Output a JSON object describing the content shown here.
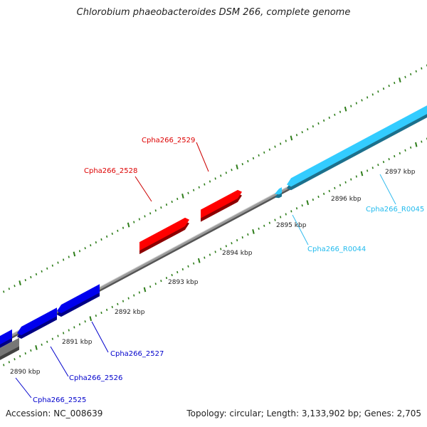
{
  "title": "Chlorobium phaeobacteroides DSM 266, complete genome",
  "footer": {
    "accession": "Accession: NC_008639",
    "topology": "Topology: circular; Length: 3,133,902 bp; Genes: 2,705"
  },
  "colors": {
    "backbone": "#8a8a8a",
    "ticks": "#2e7d1a",
    "kbp_label": "#222222",
    "cds_red": "#ff0000",
    "cds_blue": "#0000ee",
    "rrna_cyan": "#33ccff",
    "gray_feature": "#777777"
  },
  "kbp_labels": [
    "2890 kbp",
    "2891 kbp",
    "2892 kbp",
    "2893 kbp",
    "2894 kbp",
    "2895 kbp",
    "2896 kbp",
    "2897 kbp"
  ],
  "features": [
    {
      "id": "cpha266-2528",
      "strand": "plus",
      "color": "#ff0000",
      "label": "Cpha266_2528"
    },
    {
      "id": "cpha266-2529",
      "strand": "plus",
      "color": "#ff0000",
      "label": "Cpha266_2529"
    },
    {
      "id": "cpha266-r0044",
      "strand": "minus",
      "color": "#33ccff",
      "label": "Cpha266_R0044"
    },
    {
      "id": "cpha266-r0045",
      "strand": "minus",
      "color": "#33ccff",
      "label": "Cpha266_R0045"
    },
    {
      "id": "cpha266-2525",
      "strand": "minus",
      "color": "#0000ee",
      "label": "Cpha266_2525"
    },
    {
      "id": "cpha266-2526",
      "strand": "minus",
      "color": "#0000ee",
      "label": "Cpha266_2526"
    },
    {
      "id": "cpha266-2527",
      "strand": "minus",
      "color": "#0000ee",
      "label": "Cpha266_2527"
    }
  ]
}
